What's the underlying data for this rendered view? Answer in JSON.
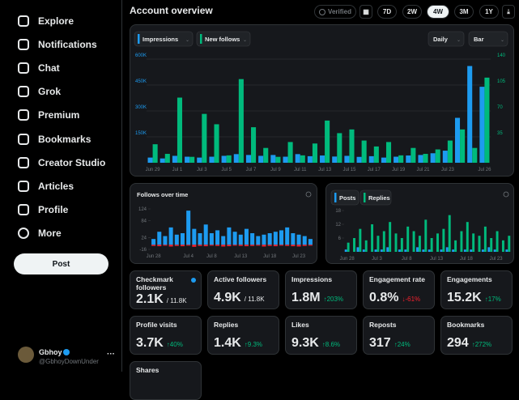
{
  "sidebar": {
    "nav": [
      "Explore",
      "Notifications",
      "Chat",
      "Grok",
      "Premium",
      "Bookmarks",
      "Creator Studio",
      "Articles",
      "Profile",
      "More"
    ],
    "post_button": "Post",
    "user": {
      "name": "Gbhoy",
      "handle": "@GbhoyDownUnder"
    }
  },
  "header": {
    "title": "Account overview",
    "verified": "Verified",
    "ranges": [
      "7D",
      "2W",
      "4W",
      "3M",
      "1Y"
    ],
    "selected_range_index": 2
  },
  "impressions_chart": {
    "type": "bar",
    "controls": [
      "Daily",
      "Bar"
    ],
    "grid": true,
    "bar_layout": "grouped",
    "categories": [
      "Jun 29",
      null,
      "Jul 1",
      null,
      "Jul 3",
      null,
      "Jul 5",
      null,
      "Jul 7",
      null,
      "Jul 9",
      null,
      "Jul 11",
      null,
      "Jul 13",
      null,
      "Jul 15",
      null,
      "Jul 17",
      null,
      "Jul 19",
      null,
      "Jul 21",
      null,
      "Jul 23",
      null,
      null,
      "Jul 26"
    ],
    "series": [
      {
        "name": "Impressions",
        "color": "#1d9bf0",
        "values": [
          30000,
          25000,
          40000,
          35000,
          30000,
          35000,
          40000,
          50000,
          45000,
          40000,
          45000,
          35000,
          50000,
          38000,
          42000,
          36000,
          40000,
          34000,
          38000,
          30000,
          35000,
          42000,
          45000,
          55000,
          70000,
          260000,
          560000,
          440000
        ]
      },
      {
        "name": "New follows",
        "color": "#00ba7c",
        "axis": "y2",
        "values": [
          25,
          12,
          88,
          8,
          66,
          52,
          10,
          113,
          48,
          20,
          8,
          28,
          10,
          26,
          57,
          40,
          45,
          30,
          22,
          28,
          10,
          20,
          12,
          18,
          30,
          45,
          20,
          115
        ]
      }
    ],
    "ylim": [
      0,
      600000
    ],
    "yticks": [
      {
        "value": 150000,
        "label": "150K"
      },
      {
        "value": 300000,
        "label": "300K"
      },
      {
        "value": 450000,
        "label": "450K"
      },
      {
        "value": 600000,
        "label": "600K"
      }
    ],
    "y2lim": [
      0,
      140
    ],
    "y2ticks": [
      35,
      70,
      105,
      140
    ]
  },
  "follows_chart": {
    "type": "bar",
    "title": "Follows over time",
    "bar_layout": "overlay",
    "categories": [
      "Jun 28",
      null,
      null,
      null,
      null,
      null,
      "Jul 4",
      null,
      null,
      null,
      "Jul 8",
      null,
      null,
      null,
      null,
      "Jul 13",
      null,
      null,
      null,
      null,
      "Jul 18",
      null,
      null,
      null,
      null,
      "Jul 23",
      null,
      null
    ],
    "series": [
      {
        "color": "#1d9bf0",
        "values": [
          20,
          45,
          30,
          60,
          35,
          40,
          118,
          55,
          40,
          70,
          40,
          50,
          30,
          60,
          45,
          35,
          55,
          40,
          30,
          35,
          40,
          45,
          50,
          60,
          40,
          35,
          30,
          20
        ]
      },
      {
        "color": "#f4212e",
        "values": [
          -4,
          -5,
          -3,
          -6,
          -4,
          -5,
          -3,
          -7,
          -4,
          -5,
          -3,
          -4,
          -6,
          -5,
          -3,
          -4,
          -5,
          -4,
          -3,
          -6,
          -4,
          -5,
          -3,
          -4,
          -5,
          -6,
          -4,
          -3
        ]
      }
    ],
    "ylim": [
      -16,
      124
    ],
    "yticks": [
      -16,
      24,
      84,
      124
    ]
  },
  "posts_chart": {
    "type": "bar",
    "bar_layout": "grouped",
    "categories": [
      "Jun 28",
      null,
      null,
      null,
      null,
      "Jul 3",
      null,
      null,
      null,
      null,
      "Jul 8",
      null,
      null,
      null,
      null,
      "Jul 13",
      null,
      null,
      null,
      null,
      "Jul 18",
      null,
      null,
      null,
      null,
      "Jul 23",
      null,
      null
    ],
    "series": [
      {
        "name": "Posts",
        "color": "#1d9bf0",
        "values": [
          1,
          0,
          2,
          1,
          0,
          1,
          1,
          2,
          0,
          1,
          1,
          0,
          2,
          1,
          1,
          0,
          1,
          2,
          1,
          0,
          1,
          1,
          0,
          1,
          2,
          1,
          0,
          1
        ]
      },
      {
        "name": "Replies",
        "color": "#00ba7c",
        "values": [
          4,
          6,
          10,
          5,
          12,
          7,
          9,
          13,
          8,
          6,
          11,
          9,
          7,
          14,
          6,
          8,
          10,
          16,
          5,
          9,
          13,
          8,
          7,
          11,
          6,
          9,
          5,
          7
        ]
      }
    ],
    "ylim": [
      0,
      18
    ],
    "yticks": [
      6,
      12,
      18
    ]
  },
  "stats": [
    {
      "label": "Checkmark followers",
      "value": "2.1K",
      "total": "/ 11.8K"
    },
    {
      "label": "Active followers",
      "value": "4.9K",
      "total": "/ 11.8K"
    },
    {
      "label": "Impressions",
      "value": "1.8M",
      "change": "↑203%",
      "trend": "up"
    },
    {
      "label": "Engagement rate",
      "value": "0.8%",
      "change": "↓-61%",
      "trend": "down"
    },
    {
      "label": "Engagements",
      "value": "15.2K",
      "change": "↑17%",
      "trend": "up"
    },
    {
      "label": "Profile visits",
      "value": "3.7K",
      "change": "↑40%",
      "trend": "up"
    },
    {
      "label": "Replies",
      "value": "1.4K",
      "change": "↑9.3%",
      "trend": "up"
    },
    {
      "label": "Likes",
      "value": "9.3K",
      "change": "↑8.6%",
      "trend": "up"
    },
    {
      "label": "Reposts",
      "value": "317",
      "change": "↑24%",
      "trend": "up"
    },
    {
      "label": "Bookmarks",
      "value": "294",
      "change": "↑272%",
      "trend": "up"
    },
    {
      "label": "Shares"
    }
  ]
}
